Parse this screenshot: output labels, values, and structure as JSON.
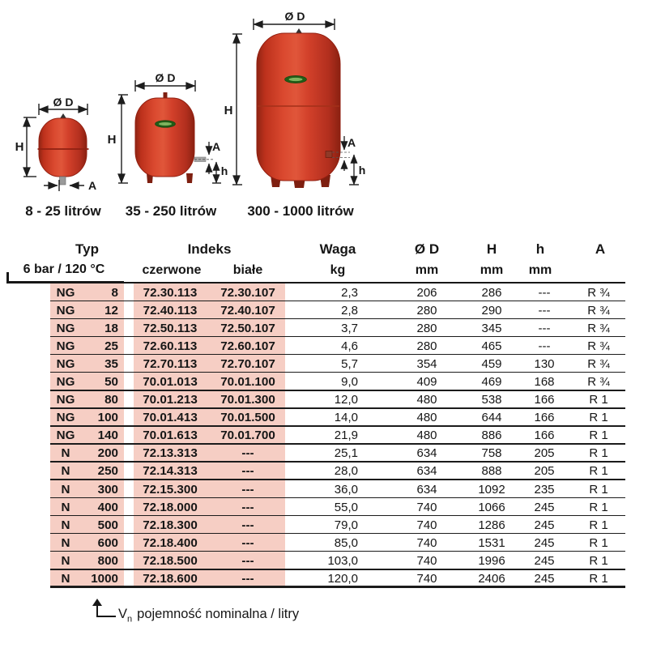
{
  "diagram": {
    "tank_color": "#cf3a24",
    "logo_color": "#215c17",
    "tanks": [
      {
        "label": "8 - 25 litrów",
        "dims": {
          "d": "Ø D",
          "h_total": "H",
          "a": "A"
        }
      },
      {
        "label": "35 - 250 litrów",
        "dims": {
          "d": "Ø D",
          "h_total": "H",
          "a": "A",
          "h_conn": "h"
        }
      },
      {
        "label": "300 - 1000 litrów",
        "dims": {
          "d": "Ø D",
          "h_total": "H",
          "a": "A",
          "h_conn": "h"
        }
      }
    ]
  },
  "table": {
    "highlight_color": "#f6cec4",
    "header": {
      "typ": "Typ",
      "typ_sub": "6 bar / 120 °C",
      "indeks": "Indeks",
      "czerwone": "czerwone",
      "biale": "białe",
      "waga": "Waga",
      "waga_unit": "kg",
      "d": "Ø D",
      "d_unit": "mm",
      "h_big": "H",
      "h_big_unit": "mm",
      "h_small": "h",
      "h_small_unit": "mm",
      "a": "A"
    },
    "rows": [
      {
        "prefix": "NG",
        "size": "8",
        "czerwone": "72.30.113",
        "biale": "72.30.107",
        "waga": "2,3",
        "d": "206",
        "h": "286",
        "hs": "---",
        "a": "R ¾"
      },
      {
        "prefix": "NG",
        "size": "12",
        "czerwone": "72.40.113",
        "biale": "72.40.107",
        "waga": "2,8",
        "d": "280",
        "h": "290",
        "hs": "---",
        "a": "R ¾"
      },
      {
        "prefix": "NG",
        "size": "18",
        "czerwone": "72.50.113",
        "biale": "72.50.107",
        "waga": "3,7",
        "d": "280",
        "h": "345",
        "hs": "---",
        "a": "R ¾"
      },
      {
        "prefix": "NG",
        "size": "25",
        "czerwone": "72.60.113",
        "biale": "72.60.107",
        "waga": "4,6",
        "d": "280",
        "h": "465",
        "hs": "---",
        "a": "R ¾"
      },
      {
        "prefix": "NG",
        "size": "35",
        "czerwone": "72.70.113",
        "biale": "72.70.107",
        "waga": "5,7",
        "d": "354",
        "h": "459",
        "hs": "130",
        "a": "R ¾"
      },
      {
        "prefix": "NG",
        "size": "50",
        "czerwone": "70.01.013",
        "biale": "70.01.100",
        "waga": "9,0",
        "d": "409",
        "h": "469",
        "hs": "168",
        "a": "R ¾"
      },
      {
        "prefix": "NG",
        "size": "80",
        "czerwone": "70.01.213",
        "biale": "70.01.300",
        "waga": "12,0",
        "d": "480",
        "h": "538",
        "hs": "166",
        "a": "R 1"
      },
      {
        "prefix": "NG",
        "size": "100",
        "czerwone": "70.01.413",
        "biale": "70.01.500",
        "waga": "14,0",
        "d": "480",
        "h": "644",
        "hs": "166",
        "a": "R 1"
      },
      {
        "prefix": "NG",
        "size": "140",
        "czerwone": "70.01.613",
        "biale": "70.01.700",
        "waga": "21,9",
        "d": "480",
        "h": "886",
        "hs": "166",
        "a": "R 1"
      },
      {
        "prefix": "N",
        "size": "200",
        "czerwone": "72.13.313",
        "biale": "---",
        "waga": "25,1",
        "d": "634",
        "h": "758",
        "hs": "205",
        "a": "R 1"
      },
      {
        "prefix": "N",
        "size": "250",
        "czerwone": "72.14.313",
        "biale": "---",
        "waga": "28,0",
        "d": "634",
        "h": "888",
        "hs": "205",
        "a": "R 1"
      },
      {
        "prefix": "N",
        "size": "300",
        "czerwone": "72.15.300",
        "biale": "---",
        "waga": "36,0",
        "d": "634",
        "h": "1092",
        "hs": "235",
        "a": "R 1"
      },
      {
        "prefix": "N",
        "size": "400",
        "czerwone": "72.18.000",
        "biale": "---",
        "waga": "55,0",
        "d": "740",
        "h": "1066",
        "hs": "245",
        "a": "R 1"
      },
      {
        "prefix": "N",
        "size": "500",
        "czerwone": "72.18.300",
        "biale": "---",
        "waga": "79,0",
        "d": "740",
        "h": "1286",
        "hs": "245",
        "a": "R 1"
      },
      {
        "prefix": "N",
        "size": "600",
        "czerwone": "72.18.400",
        "biale": "---",
        "waga": "85,0",
        "d": "740",
        "h": "1531",
        "hs": "245",
        "a": "R 1"
      },
      {
        "prefix": "N",
        "size": "800",
        "czerwone": "72.18.500",
        "biale": "---",
        "waga": "103,0",
        "d": "740",
        "h": "1996",
        "hs": "245",
        "a": "R 1"
      },
      {
        "prefix": "N",
        "size": "1000",
        "czerwone": "72.18.600",
        "biale": "---",
        "waga": "120,0",
        "d": "740",
        "h": "2406",
        "hs": "245",
        "a": "R 1"
      }
    ]
  },
  "footer": {
    "v": "V",
    "sub": "n",
    "text": "pojemność nominalna / litry"
  }
}
